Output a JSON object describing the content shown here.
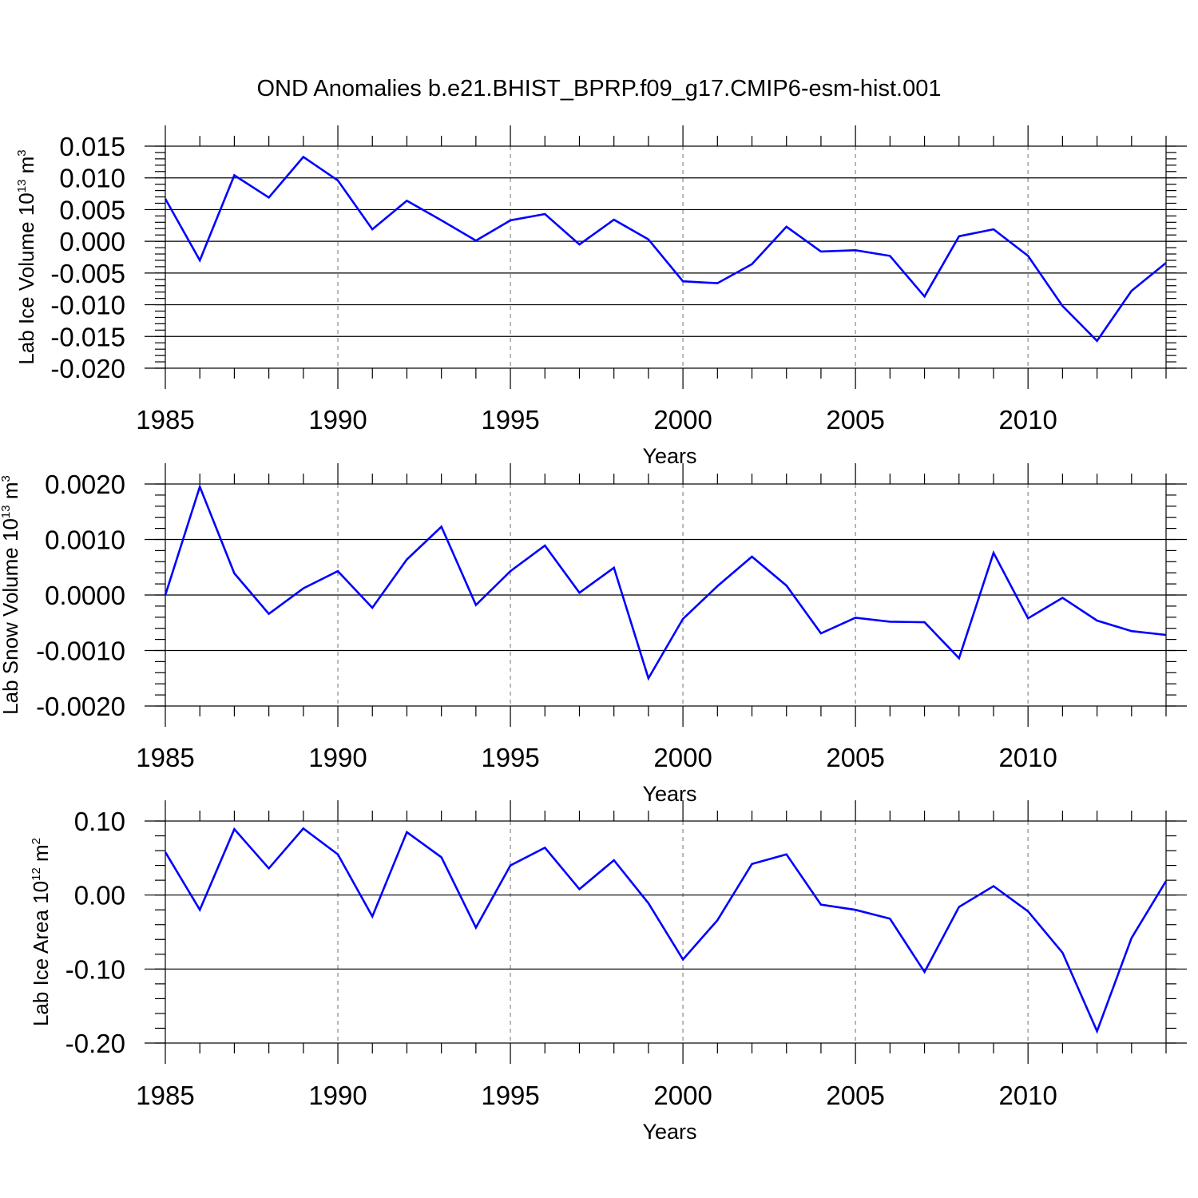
{
  "title": "OND Anomalies b.e21.BHIST_BPRP.f09_g17.CMIP6-esm-hist.001",
  "chart_data": [
    {
      "type": "line",
      "x_label": "Years",
      "y_label": "Lab Ice Volume 10",
      "y_label_exponent": "13",
      "y_label_unit": " m",
      "y_label_unit_exponent": "3",
      "x_range": [
        1985,
        2014
      ],
      "y_range": [
        -0.02,
        0.015
      ],
      "x_ticks": [
        "1985",
        "1990",
        "1995",
        "2000",
        "2005",
        "2010"
      ],
      "y_ticks": [
        "0.015",
        "0.010",
        "0.005",
        "0.000",
        "-0.005",
        "-0.010",
        "-0.015",
        "-0.020"
      ],
      "y_tick_values": [
        0.015,
        0.01,
        0.005,
        0.0,
        -0.005,
        -0.01,
        -0.015,
        -0.02
      ],
      "line_color": "#0000ff",
      "series": [
        {
          "x": [
            1985,
            1986,
            1987,
            1988,
            1989,
            1990,
            1991,
            1992,
            1993,
            1994,
            1995,
            1996,
            1997,
            1998,
            1999,
            2000,
            2001,
            2002,
            2003,
            2004,
            2005,
            2006,
            2007,
            2008,
            2009,
            2010,
            2011,
            2012,
            2013,
            2014
          ],
          "values": [
            0.0067,
            -0.003,
            0.0104,
            0.0069,
            0.0133,
            0.0096,
            0.0019,
            0.0064,
            0.0033,
            0.0001,
            0.0033,
            0.0043,
            -0.0005,
            0.0034,
            0.0003,
            -0.0063,
            -0.0066,
            -0.0036,
            0.0023,
            -0.0016,
            -0.0014,
            -0.0023,
            -0.0087,
            0.0008,
            0.0019,
            -0.0023,
            -0.0102,
            -0.0157,
            -0.0078,
            -0.0034
          ]
        }
      ]
    },
    {
      "type": "line",
      "x_label": "Years",
      "y_label": "Lab Snow Volume 10",
      "y_label_exponent": "13",
      "y_label_unit": " m",
      "y_label_unit_exponent": "3",
      "x_range": [
        1985,
        2014
      ],
      "y_range": [
        -0.002,
        0.002
      ],
      "x_ticks": [
        "1985",
        "1990",
        "1995",
        "2000",
        "2005",
        "2010"
      ],
      "y_ticks": [
        "0.0020",
        "0.0010",
        "0.0000",
        "-0.0010",
        "-0.0020"
      ],
      "y_tick_values": [
        0.002,
        0.001,
        0.0,
        -0.001,
        -0.002
      ],
      "line_color": "#0000ff",
      "series": [
        {
          "x": [
            1985,
            1986,
            1987,
            1988,
            1989,
            1990,
            1991,
            1992,
            1993,
            1994,
            1995,
            1996,
            1997,
            1998,
            1999,
            2000,
            2001,
            2002,
            2003,
            2004,
            2005,
            2006,
            2007,
            2008,
            2009,
            2010,
            2011,
            2012,
            2013,
            2014
          ],
          "values": [
            0.0,
            0.00195,
            0.00039,
            -0.00034,
            0.00012,
            0.00043,
            -0.00023,
            0.00064,
            0.00123,
            -0.00018,
            0.00043,
            0.00089,
            4e-05,
            0.00049,
            -0.0015,
            -0.00043,
            0.00016,
            0.00069,
            0.00017,
            -0.00069,
            -0.00041,
            -0.00048,
            -0.00049,
            -0.00114,
            0.00076,
            -0.00042,
            -5e-05,
            -0.00046,
            -0.00065,
            -0.00072
          ]
        }
      ]
    },
    {
      "type": "line",
      "x_label": "Years",
      "y_label": "Lab Ice Area 10",
      "y_label_exponent": "12",
      "y_label_unit": " m",
      "y_label_unit_exponent": "2",
      "x_range": [
        1985,
        2014
      ],
      "y_range": [
        -0.2,
        0.1
      ],
      "x_ticks": [
        "1985",
        "1990",
        "1995",
        "2000",
        "2005",
        "2010"
      ],
      "y_ticks": [
        "0.10",
        "0.00",
        "-0.10",
        "-0.20"
      ],
      "y_tick_values": [
        0.1,
        0.0,
        -0.1,
        -0.2
      ],
      "line_color": "#0000ff",
      "series": [
        {
          "x": [
            1985,
            1986,
            1987,
            1988,
            1989,
            1990,
            1991,
            1992,
            1993,
            1994,
            1995,
            1996,
            1997,
            1998,
            1999,
            2000,
            2001,
            2002,
            2003,
            2004,
            2005,
            2006,
            2007,
            2008,
            2009,
            2010,
            2011,
            2012,
            2013,
            2014
          ],
          "values": [
            0.058,
            -0.02,
            0.089,
            0.036,
            0.09,
            0.055,
            -0.029,
            0.085,
            0.051,
            -0.044,
            0.04,
            0.064,
            0.008,
            0.047,
            -0.011,
            -0.087,
            -0.034,
            0.042,
            0.055,
            -0.013,
            -0.02,
            -0.032,
            -0.104,
            -0.016,
            0.012,
            -0.022,
            -0.078,
            -0.184,
            -0.058,
            0.019
          ]
        }
      ]
    }
  ]
}
